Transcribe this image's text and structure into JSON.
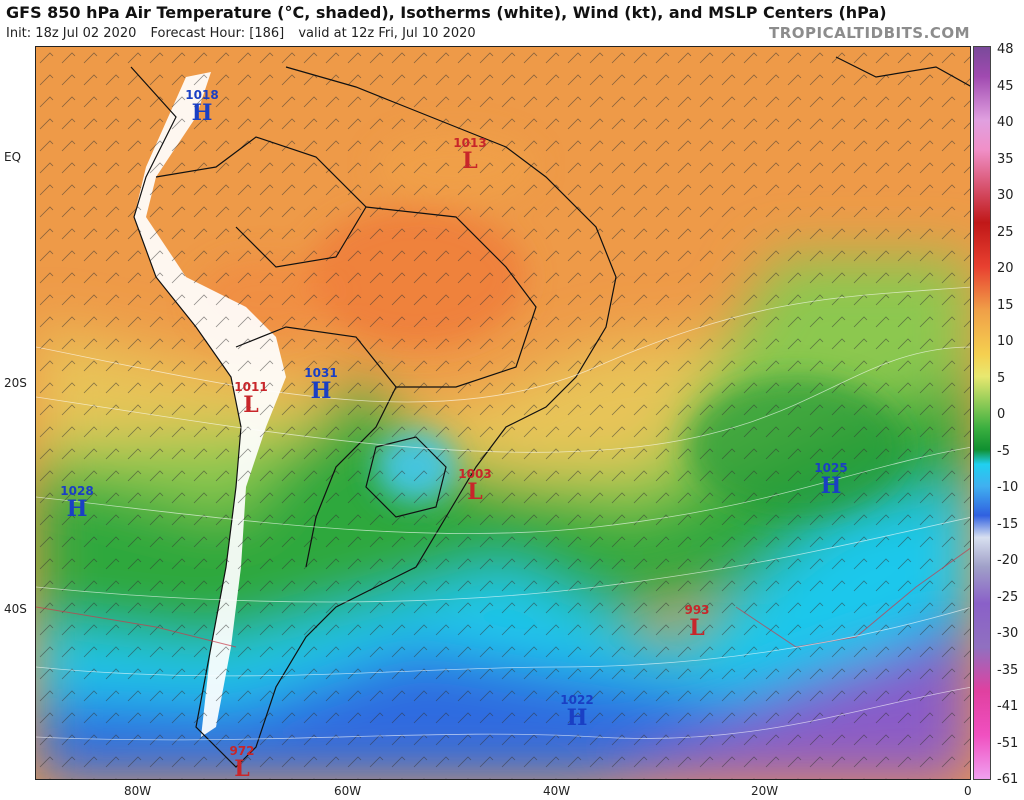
{
  "header": {
    "title": "GFS 850 hPa Air Temperature (°C, shaded), Isotherms (white), Wind (kt), and MSLP Centers (hPa)",
    "init": "Init: 18z Jul 02 2020",
    "forecast_hour": "Forecast Hour: [186]",
    "valid": "valid at 12z Fri, Jul 10 2020",
    "credit": "TROPICALTIDBITS.COM"
  },
  "axes": {
    "lat_labels": [
      "EQ",
      "20S",
      "40S"
    ],
    "lon_labels": [
      "80W",
      "60W",
      "40W",
      "20W",
      "0"
    ]
  },
  "colorbar": {
    "ticks": [
      "48",
      "45",
      "40",
      "35",
      "30",
      "25",
      "20",
      "15",
      "10",
      "5",
      "0",
      "-5",
      "-10",
      "-15",
      "-20",
      "-25",
      "-30",
      "-35",
      "-41",
      "-51",
      "-61"
    ]
  },
  "pressure_centers": [
    {
      "type": "H",
      "value": "1018"
    },
    {
      "type": "L",
      "value": "1013"
    },
    {
      "type": "L",
      "value": "1011"
    },
    {
      "type": "H",
      "value": "1031"
    },
    {
      "type": "H",
      "value": "1028"
    },
    {
      "type": "L",
      "value": "1003"
    },
    {
      "type": "H",
      "value": "1025"
    },
    {
      "type": "L",
      "value": "993"
    },
    {
      "type": "H",
      "value": "1022"
    },
    {
      "type": "L",
      "value": "972"
    }
  ],
  "colors": {
    "high": "#1a3fc4",
    "low": "#c8262a",
    "hot": "#f0a048",
    "mild": "#e8d060",
    "green": "#3cb040",
    "cyan": "#20d0f0",
    "blue": "#3060e0",
    "purple": "#8a60c8"
  }
}
